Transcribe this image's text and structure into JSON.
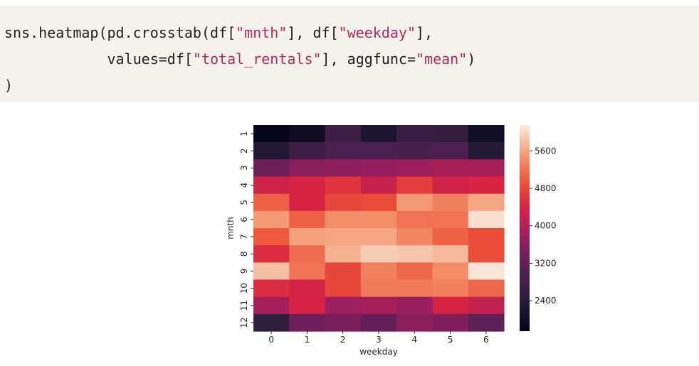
{
  "code": {
    "line1": {
      "prefix": "sns.heatmap(pd.crosstab(df[",
      "s1": "\"mnth\"",
      "mid": "], df[",
      "s2": "\"weekday\"",
      "suffix": "],"
    },
    "line2": {
      "prefix": "            values=df[",
      "s1": "\"total_rentals\"",
      "mid": "], aggfunc=",
      "s2": "\"mean\"",
      "suffix": ")"
    },
    "line3": {
      "prefix": ")"
    }
  },
  "chart_data": {
    "type": "heatmap",
    "xlabel": "weekday",
    "ylabel": "mnth",
    "x_categories": [
      "0",
      "1",
      "2",
      "3",
      "4",
      "5",
      "6"
    ],
    "y_categories": [
      "1",
      "2",
      "3",
      "4",
      "5",
      "6",
      "7",
      "8",
      "9",
      "10",
      "11",
      "12"
    ],
    "values": [
      [
        1800,
        1950,
        2700,
        2200,
        2650,
        2550,
        2000
      ],
      [
        2300,
        2700,
        2900,
        2900,
        2850,
        2950,
        2350
      ],
      [
        3300,
        3600,
        3650,
        3700,
        3800,
        3900,
        3900
      ],
      [
        4300,
        4400,
        4600,
        4200,
        4700,
        4300,
        4400
      ],
      [
        5050,
        4400,
        4800,
        4850,
        5500,
        5300,
        5600
      ],
      [
        5500,
        5050,
        5400,
        5400,
        5200,
        5200,
        6050
      ],
      [
        5000,
        5550,
        5600,
        5600,
        5350,
        5050,
        4900
      ],
      [
        4500,
        5150,
        5700,
        5900,
        5850,
        5750,
        4900
      ],
      [
        5800,
        5200,
        4800,
        5300,
        5100,
        5400,
        6100
      ],
      [
        4500,
        4350,
        4800,
        5250,
        5250,
        5300,
        5100
      ],
      [
        3900,
        4400,
        3800,
        3900,
        3750,
        4400,
        4150
      ],
      [
        2500,
        3300,
        3450,
        3200,
        3600,
        3500,
        3150
      ]
    ],
    "colorbar": {
      "min": 1750,
      "max": 6150,
      "ticks": [
        2400,
        3200,
        4000,
        4800,
        5600
      ],
      "tick_labels": [
        "2400",
        "3200",
        "4000",
        "4800",
        "5600"
      ]
    },
    "colormap": "rocket"
  }
}
